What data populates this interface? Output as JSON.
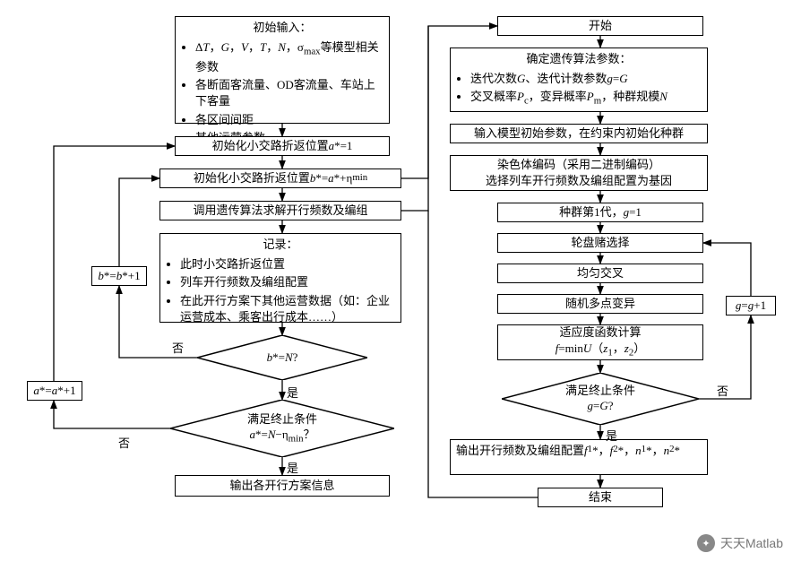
{
  "left": {
    "input_header": "初始输入：",
    "input_items": [
      "Δ<i>T</i>，<i>G</i>，<i>V</i>，<i>T</i>，<i>N</i>，σ<sub>max</sub>等模型相关参数",
      "各断面客流量、OD客流量、车站上下客量",
      "各区间间距",
      "其他运营参数"
    ],
    "init_a": "初始化小交路折返位置<i>a</i>*=1",
    "init_b": "初始化小交路折返位置<i>b</i>*=<i>a</i>*+η<sub>min</sub>",
    "call_ga": "调用遗传算法求解开行频数及编组",
    "record_header": "记录：",
    "record_items": [
      "此时小交路折返位置",
      "列车开行频数及编组配置",
      "在此开行方案下其他运营数据（如：企业运营成本、乘客出行成本……）"
    ],
    "b_inc": "<i>b</i>*=<i>b</i>*+1",
    "a_inc": "<i>a</i>*=<i>a</i>*+1",
    "cond_b": "<i>b</i>*=<i>N</i>?",
    "cond_a_header": "满足终止条件",
    "cond_a": "<i>a</i>*=<i>N</i>−η<sub>min</sub>？",
    "output": "输出各开行方案信息",
    "yes": "是",
    "no": "否"
  },
  "right": {
    "start": "开始",
    "ga_param_header": "确定遗传算法参数：",
    "ga_param_items": [
      "迭代次数<i>G</i>、迭代计数参数<i>g</i>=<i>G</i>",
      "交叉概率<i>P</i><sub>c</sub>，变异概率<i>P</i><sub>m</sub>，种群规模<i>N</i>"
    ],
    "init_pop": "输入模型初始参数，在约束内初始化种群",
    "encode": "染色体编码（采用二进制编码）\n选择列车开行频数及编组配置为基因",
    "gen1": "种群第1代，<i>g</i>=1",
    "roulette": "轮盘赌选择",
    "crossover": "均匀交叉",
    "mutation": "随机多点变异",
    "fitness_header": "适应度函数计算",
    "fitness_formula": "<i>f</i>=min<i>U</i>（<i>z</i><sub>1</sub>，<i>z</i><sub>2</sub>）",
    "cond_g_header": "满足终止条件",
    "cond_g": "<i>g</i>=<i>G</i>?",
    "g_inc": "<i>g</i>=<i>g</i>+1",
    "output": "输出开行频数及编组配置<i>f</i><sub>1</sub>*，<i>f</i><sub>2</sub>*，<i>n</i><sub>1</sub>*，<i>n</i><sub>2</sub>*",
    "end": "结束",
    "yes": "是",
    "no": "否"
  },
  "watermark": "天天Matlab",
  "style": {
    "border_color": "#000000",
    "background": "#ffffff",
    "font_size_box": 13,
    "line_width": 1.5
  }
}
